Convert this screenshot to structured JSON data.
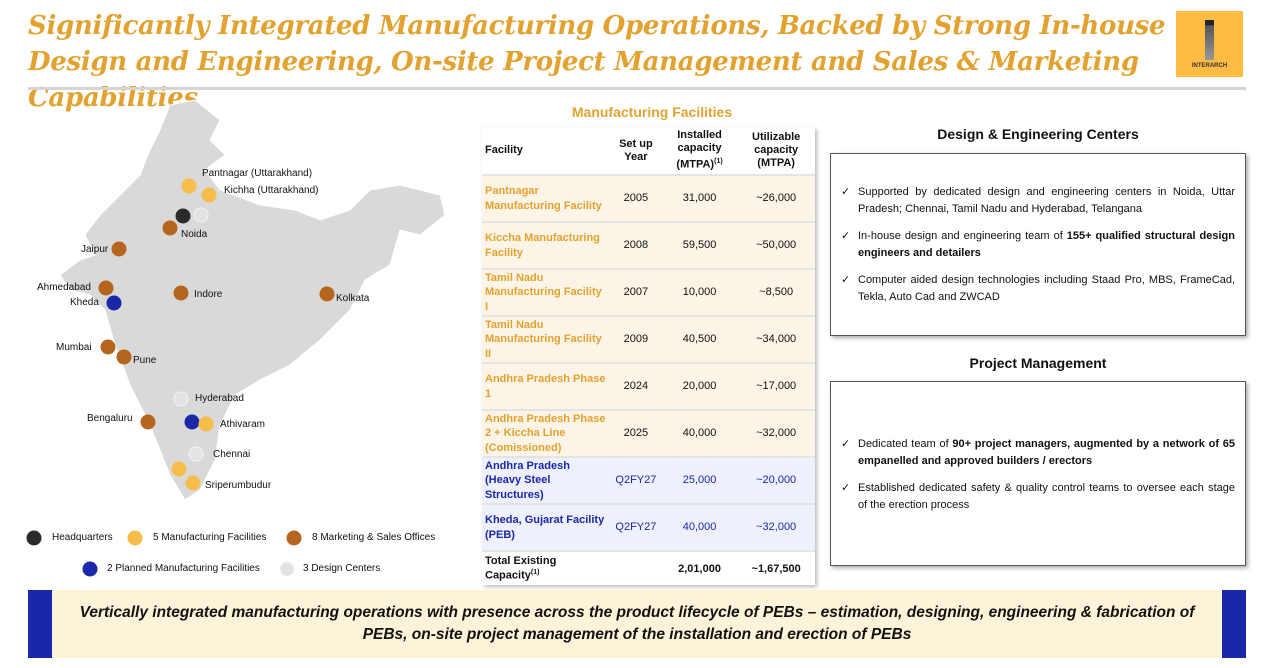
{
  "title": "Significantly Integrated Manufacturing Operations, Backed by Strong In-house Design and Engineering, On-site Project Management and Sales & Marketing Capabilities",
  "logo_text": "INTERARCH",
  "map": {
    "labels": {
      "pantnagar": "Pantnagar (Uttarakhand)",
      "kichha": "Kichha (Uttarakhand)",
      "noida": "Noida",
      "jaipur": "Jaipur",
      "ahmedabad": "Ahmedabad",
      "kheda": "Kheda",
      "indore": "Indore",
      "kolkata": "Kolkata",
      "mumbai": "Mumbai",
      "pune": "Pune",
      "hyderabad": "Hyderabad",
      "bengaluru": "Bengaluru",
      "athivaram": "Athivaram",
      "chennai": "Chennai",
      "sriperumbudur": "Sriperumbudur"
    },
    "legend": {
      "hq": "Headquarters",
      "mfg": "5 Manufacturing Facilities",
      "sales": "8 Marketing & Sales Offices",
      "planned": "2 Planned Manufacturing Facilities",
      "design": "3 Design Centers"
    },
    "colors": {
      "hq": "#2b2b2b",
      "mfg": "#F6BD4B",
      "sales": "#B5651D",
      "planned": "#1A27A8",
      "design": "#e3e3e3"
    }
  },
  "table": {
    "title": "Manufacturing Facilities",
    "headers": {
      "facility": "Facility",
      "year": "Set up Year",
      "installed": "Installed capacity (MTPA)",
      "installed_sup": "(1)",
      "utilizable": "Utilizable capacity (MTPA)"
    },
    "rows": [
      {
        "facility": "Pantnagar Manufacturing Facility",
        "year": "2005",
        "installed": "31,000",
        "utilizable": "~26,000"
      },
      {
        "facility": "Kiccha Manufacturing Facility",
        "year": "2008",
        "installed": "59,500",
        "utilizable": "~50,000"
      },
      {
        "facility": "Tamil Nadu Manufacturing Facility I",
        "year": "2007",
        "installed": "10,000",
        "utilizable": "~8,500"
      },
      {
        "facility": "Tamil Nadu Manufacturing Facility II",
        "year": "2009",
        "installed": "40,500",
        "utilizable": "~34,000"
      },
      {
        "facility": "Andhra Pradesh Phase 1",
        "year": "2024",
        "installed": "20,000",
        "utilizable": "~17,000"
      },
      {
        "facility": "Andhra Pradesh Phase 2 + Kiccha Line (Comissioned)",
        "year": "2025",
        "installed": "40,000",
        "utilizable": "~32,000"
      },
      {
        "facility": "Andhra Pradesh (Heavy Steel Structures)",
        "year": "Q2FY27",
        "installed": "25,000",
        "utilizable": "~20,000"
      },
      {
        "facility": "Kheda, Gujarat Facility (PEB)",
        "year": "Q2FY27",
        "installed": "40,000",
        "utilizable": "~32,000"
      }
    ],
    "total": {
      "label": "Total Existing Capacity",
      "sup": "(1)",
      "installed": "2,01,000",
      "utilizable": "~1,67,500"
    }
  },
  "design": {
    "title": "Design & Engineering Centers",
    "items": [
      {
        "text": "Supported by dedicated design and engineering centers in Noida, Uttar Pradesh; Chennai, Tamil Nadu and Hyderabad, Telangana"
      },
      {
        "pre": "In-house design and engineering team of ",
        "bold": "155+ qualified structural design engineers and detailers"
      },
      {
        "text": "Computer aided design technologies including Staad Pro, MBS, FrameCad, Tekla, Auto Cad and ZWCAD"
      }
    ]
  },
  "project": {
    "title": "Project Management",
    "items": [
      {
        "pre": "Dedicated team of ",
        "bold": "90+ project managers, augmented by a network of 65 empanelled and approved builders / erectors"
      },
      {
        "text": "Established dedicated safety & quality control teams to oversee each stage of the erection process"
      }
    ]
  },
  "check": "✓",
  "banner": "Vertically integrated manufacturing operations with presence across the product lifecycle of PEBs – estimation, designing, engineering & fabrication of PEBs, on-site project management of the installation and erection of PEBs"
}
